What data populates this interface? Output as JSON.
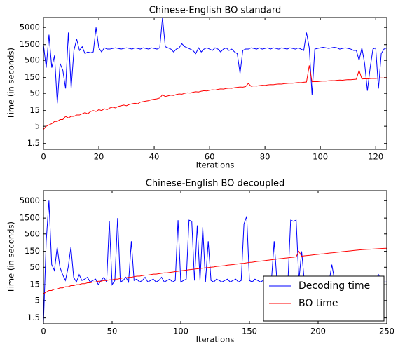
{
  "chart_data": [
    {
      "type": "line",
      "title": "Chinese-English BO standard",
      "xlabel": "Iterations",
      "ylabel": "Time (in seconds)",
      "log_y": true,
      "xlim": [
        0,
        124
      ],
      "xticks": [
        0,
        20,
        40,
        60,
        80,
        100,
        120
      ],
      "ylim": [
        1,
        10000
      ],
      "yticks": [
        1.5,
        5,
        15,
        50,
        150,
        500,
        1500,
        5000
      ],
      "x": [
        0,
        1,
        2,
        3,
        4,
        5,
        6,
        7,
        8,
        9,
        10,
        11,
        12,
        13,
        14,
        15,
        16,
        17,
        18,
        19,
        20,
        21,
        22,
        23,
        24,
        25,
        26,
        27,
        28,
        29,
        30,
        31,
        32,
        33,
        34,
        35,
        36,
        37,
        38,
        39,
        40,
        41,
        42,
        43,
        44,
        45,
        46,
        47,
        48,
        49,
        50,
        51,
        52,
        53,
        54,
        55,
        56,
        57,
        58,
        59,
        60,
        61,
        62,
        63,
        64,
        65,
        66,
        67,
        68,
        69,
        70,
        71,
        72,
        73,
        74,
        75,
        76,
        77,
        78,
        79,
        80,
        81,
        82,
        83,
        84,
        85,
        86,
        87,
        88,
        89,
        90,
        91,
        92,
        93,
        94,
        95,
        96,
        97,
        98,
        99,
        100,
        101,
        102,
        103,
        104,
        105,
        106,
        107,
        108,
        109,
        110,
        111,
        112,
        113,
        114,
        115,
        116,
        117,
        118,
        119,
        120,
        121,
        122,
        123,
        124
      ],
      "series": [
        {
          "color": "#0000ff",
          "values": [
            1500,
            300,
            3000,
            300,
            700,
            25,
            400,
            250,
            70,
            3500,
            70,
            1000,
            2200,
            1000,
            1300,
            800,
            900,
            850,
            900,
            5000,
            1200,
            900,
            1200,
            1100,
            1100,
            1150,
            1200,
            1150,
            1100,
            1150,
            1200,
            1150,
            1100,
            1200,
            1150,
            1100,
            1200,
            1150,
            1100,
            1200,
            1150,
            1100,
            1200,
            10000,
            1300,
            1200,
            1100,
            900,
            1100,
            1200,
            1600,
            1300,
            1200,
            1100,
            1000,
            800,
            1200,
            900,
            1100,
            1200,
            1100,
            1000,
            1200,
            1100,
            900,
            1100,
            1200,
            1000,
            1100,
            900,
            800,
            200,
            1000,
            1100,
            1100,
            1200,
            1150,
            1100,
            1200,
            1100,
            1150,
            1200,
            1100,
            1200,
            1150,
            1100,
            1200,
            1150,
            1100,
            1200,
            1150,
            1100,
            1200,
            1100,
            1000,
            3500,
            1200,
            45,
            1100,
            1150,
            1200,
            1250,
            1200,
            1150,
            1200,
            1250,
            1200,
            1100,
            1150,
            1200,
            1150,
            1100,
            1000,
            1000,
            500,
            1200,
            400,
            60,
            300,
            1100,
            1200,
            70,
            800,
            1100,
            1200
          ]
        },
        {
          "color": "#ff0000",
          "values": [
            4,
            5,
            5.5,
            6,
            7,
            7,
            8,
            8,
            10,
            9,
            10,
            10,
            11,
            11,
            12,
            13,
            12,
            14,
            15,
            14,
            16,
            15,
            17,
            16,
            18,
            19,
            18,
            20,
            21,
            22,
            21,
            23,
            24,
            25,
            24,
            27,
            28,
            29,
            30,
            32,
            33,
            34,
            36,
            45,
            40,
            42,
            44,
            43,
            46,
            48,
            47,
            50,
            52,
            51,
            54,
            56,
            55,
            58,
            60,
            59,
            62,
            64,
            63,
            66,
            68,
            67,
            70,
            72,
            71,
            74,
            76,
            78,
            77,
            80,
            100,
            82,
            84,
            83,
            86,
            88,
            87,
            90,
            92,
            91,
            94,
            96,
            95,
            98,
            100,
            102,
            101,
            104,
            106,
            105,
            108,
            110,
            350,
            112,
            114,
            113,
            116,
            118,
            117,
            120,
            122,
            121,
            124,
            126,
            125,
            128,
            130,
            129,
            132,
            134,
            250,
            136,
            138,
            137,
            140,
            142,
            141,
            144,
            146,
            145,
            148
          ]
        }
      ]
    },
    {
      "type": "line",
      "title": "Chinese-English BO decoupled",
      "xlabel": "Iterations",
      "ylabel": "Time (in seconds)",
      "log_y": true,
      "xlim": [
        0,
        250
      ],
      "xticks": [
        0,
        50,
        100,
        150,
        200,
        250
      ],
      "ylim": [
        1,
        10000
      ],
      "yticks": [
        1.5,
        5,
        15,
        50,
        150,
        500,
        1500,
        5000
      ],
      "legend": "lower right",
      "x": [
        0,
        2,
        4,
        6,
        8,
        10,
        12,
        14,
        16,
        18,
        20,
        22,
        24,
        26,
        28,
        30,
        32,
        34,
        36,
        38,
        40,
        42,
        44,
        46,
        48,
        50,
        52,
        54,
        56,
        58,
        60,
        62,
        64,
        66,
        68,
        70,
        72,
        74,
        76,
        78,
        80,
        82,
        84,
        86,
        88,
        90,
        92,
        94,
        96,
        98,
        100,
        102,
        104,
        106,
        108,
        110,
        112,
        114,
        116,
        118,
        120,
        122,
        124,
        126,
        128,
        130,
        132,
        134,
        136,
        138,
        140,
        142,
        144,
        146,
        148,
        150,
        152,
        154,
        156,
        158,
        160,
        162,
        164,
        166,
        168,
        170,
        172,
        174,
        176,
        178,
        180,
        182,
        184,
        186,
        188,
        190,
        192,
        194,
        196,
        198,
        200,
        202,
        204,
        206,
        208,
        210,
        212,
        214,
        216,
        218,
        220,
        222,
        224,
        226,
        228,
        230,
        232,
        234,
        236,
        238,
        240,
        242,
        244,
        246,
        248,
        250
      ],
      "series": [
        {
          "name": "Decoding time",
          "color": "#0000ff",
          "values": [
            1,
            300,
            5000,
            60,
            40,
            200,
            50,
            30,
            20,
            50,
            200,
            25,
            18,
            30,
            20,
            22,
            25,
            18,
            20,
            22,
            15,
            20,
            25,
            18,
            1200,
            15,
            20,
            1500,
            18,
            20,
            25,
            18,
            300,
            20,
            22,
            18,
            20,
            25,
            18,
            20,
            22,
            18,
            20,
            25,
            18,
            20,
            22,
            18,
            20,
            1300,
            18,
            20,
            22,
            1300,
            1200,
            20,
            900,
            20,
            800,
            18,
            300,
            20,
            18,
            22,
            20,
            18,
            20,
            22,
            18,
            20,
            22,
            18,
            20,
            1000,
            1700,
            20,
            18,
            22,
            20,
            18,
            20,
            22,
            18,
            20,
            300,
            20,
            18,
            22,
            20,
            18,
            1300,
            1200,
            1300,
            20,
            150,
            18,
            20,
            22,
            18,
            20,
            22,
            18,
            20,
            22,
            18,
            60,
            20,
            18,
            22,
            20,
            18,
            20,
            22,
            18,
            20,
            22,
            18,
            20,
            22,
            18,
            20,
            22,
            30,
            20,
            18,
            18
          ]
        },
        {
          "name": "BO time",
          "color": "#ff0000",
          "values": [
            8,
            9,
            10,
            10,
            11,
            11,
            12,
            12,
            13,
            13,
            14,
            14,
            15,
            15,
            16,
            16,
            17,
            17,
            18,
            18,
            19,
            19,
            20,
            20,
            21,
            21,
            22,
            22,
            23,
            24,
            24,
            25,
            25,
            26,
            27,
            27,
            28,
            29,
            29,
            30,
            31,
            31,
            32,
            33,
            34,
            34,
            35,
            36,
            37,
            38,
            39,
            40,
            41,
            42,
            43,
            44,
            45,
            46,
            47,
            48,
            49,
            50,
            51,
            53,
            54,
            55,
            56,
            58,
            59,
            60,
            62,
            63,
            65,
            66,
            68,
            70,
            71,
            73,
            75,
            76,
            78,
            80,
            82,
            84,
            86,
            88,
            90,
            92,
            94,
            96,
            98,
            100,
            103,
            150,
            107,
            110,
            112,
            114,
            117,
            120,
            122,
            125,
            127,
            130,
            133,
            135,
            138,
            141,
            144,
            147,
            150,
            153,
            156,
            159,
            162,
            165,
            168,
            170,
            172,
            174,
            176,
            178,
            180,
            182,
            184,
            186
          ]
        }
      ]
    }
  ]
}
